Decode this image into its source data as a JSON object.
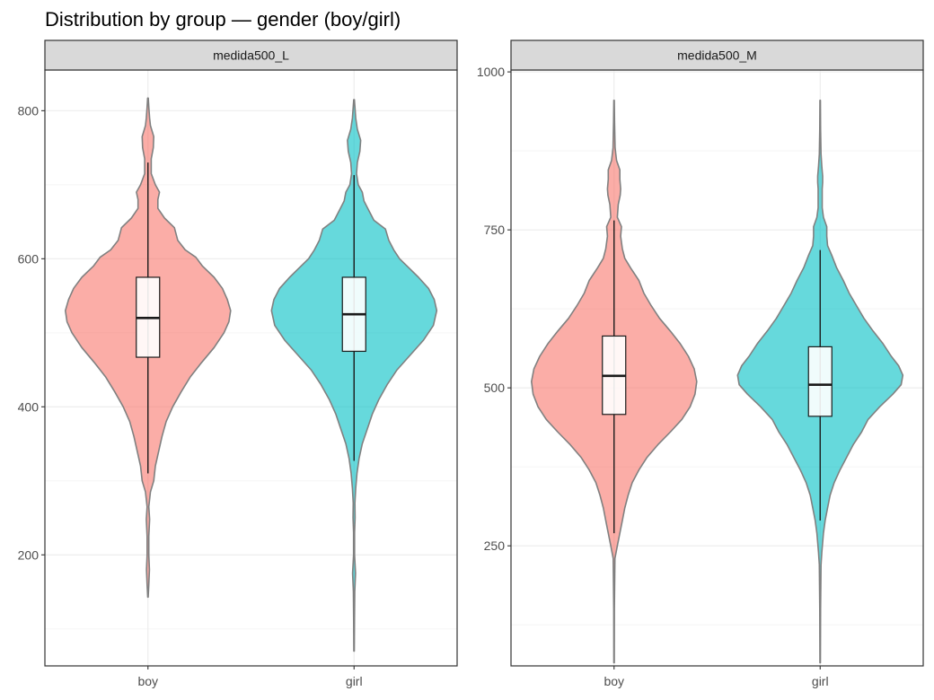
{
  "title": "Distribution by group — gender (boy/girl)",
  "colors": {
    "boy": "#F8766D",
    "girl": "#00BFC4",
    "violin_outline": "#808080",
    "strip_fill": "#d9d9d9",
    "panel_border": "#333333",
    "grid_major": "#ebebeb",
    "grid_minor": "#f5f5f5",
    "box_fill": "#ffffff",
    "box_line": "#1a1a1a"
  },
  "chart_data": [
    {
      "type": "violin",
      "panel": "medida500_L",
      "categories": [
        "boy",
        "girl"
      ],
      "ylim": [
        50,
        855
      ],
      "yticks": [
        200,
        400,
        600,
        800
      ],
      "grid": true,
      "series": [
        {
          "name": "boy",
          "min": 143,
          "max": 817,
          "box": {
            "q1": 467,
            "median": 520,
            "q3": 575,
            "whisker_low": 310,
            "whisker_high": 730
          },
          "density": [
            [
              143,
              0.003
            ],
            [
              160,
              0.01
            ],
            [
              180,
              0.018
            ],
            [
              200,
              0.01
            ],
            [
              225,
              0.01
            ],
            [
              248,
              0.02
            ],
            [
              265,
              0.01
            ],
            [
              285,
              0.03
            ],
            [
              300,
              0.07
            ],
            [
              320,
              0.09
            ],
            [
              340,
              0.13
            ],
            [
              360,
              0.17
            ],
            [
              380,
              0.22
            ],
            [
              400,
              0.3
            ],
            [
              420,
              0.4
            ],
            [
              440,
              0.51
            ],
            [
              460,
              0.65
            ],
            [
              480,
              0.8
            ],
            [
              500,
              0.92
            ],
            [
              515,
              0.98
            ],
            [
              530,
              1.0
            ],
            [
              545,
              0.96
            ],
            [
              560,
              0.9
            ],
            [
              575,
              0.8
            ],
            [
              590,
              0.66
            ],
            [
              602,
              0.58
            ],
            [
              612,
              0.45
            ],
            [
              625,
              0.36
            ],
            [
              642,
              0.32
            ],
            [
              655,
              0.2
            ],
            [
              668,
              0.12
            ],
            [
              680,
              0.12
            ],
            [
              690,
              0.14
            ],
            [
              700,
              0.09
            ],
            [
              715,
              0.04
            ],
            [
              735,
              0.04
            ],
            [
              750,
              0.065
            ],
            [
              765,
              0.07
            ],
            [
              780,
              0.03
            ],
            [
              790,
              0.02
            ],
            [
              805,
              0.01
            ],
            [
              817,
              0.004
            ]
          ]
        },
        {
          "name": "girl",
          "min": 70,
          "max": 815,
          "box": {
            "q1": 475,
            "median": 525,
            "q3": 575,
            "whisker_low": 327,
            "whisker_high": 713
          },
          "density": [
            [
              70,
              0.003
            ],
            [
              110,
              0.005
            ],
            [
              150,
              0.008
            ],
            [
              175,
              0.018
            ],
            [
              200,
              0.006
            ],
            [
              230,
              0.006
            ],
            [
              250,
              0.012
            ],
            [
              270,
              0.01
            ],
            [
              290,
              0.02
            ],
            [
              310,
              0.035
            ],
            [
              330,
              0.06
            ],
            [
              350,
              0.1
            ],
            [
              370,
              0.16
            ],
            [
              390,
              0.22
            ],
            [
              410,
              0.3
            ],
            [
              430,
              0.4
            ],
            [
              450,
              0.52
            ],
            [
              470,
              0.68
            ],
            [
              490,
              0.84
            ],
            [
              510,
              0.96
            ],
            [
              530,
              1.0
            ],
            [
              545,
              0.97
            ],
            [
              560,
              0.9
            ],
            [
              575,
              0.78
            ],
            [
              588,
              0.66
            ],
            [
              600,
              0.55
            ],
            [
              612,
              0.48
            ],
            [
              625,
              0.42
            ],
            [
              640,
              0.38
            ],
            [
              652,
              0.24
            ],
            [
              665,
              0.18
            ],
            [
              678,
              0.12
            ],
            [
              690,
              0.1
            ],
            [
              700,
              0.05
            ],
            [
              715,
              0.03
            ],
            [
              730,
              0.04
            ],
            [
              745,
              0.07
            ],
            [
              760,
              0.08
            ],
            [
              775,
              0.04
            ],
            [
              790,
              0.02
            ],
            [
              805,
              0.01
            ],
            [
              815,
              0.004
            ]
          ]
        }
      ]
    },
    {
      "type": "violin",
      "panel": "medida500_M",
      "categories": [
        "boy",
        "girl"
      ],
      "ylim": [
        60,
        1003
      ],
      "yticks": [
        250,
        500,
        750,
        1000
      ],
      "grid": true,
      "series": [
        {
          "name": "boy",
          "min": 65,
          "max": 955,
          "box": {
            "q1": 458,
            "median": 519,
            "q3": 582,
            "whisker_low": 270,
            "whisker_high": 765
          },
          "density": [
            [
              65,
              0.003
            ],
            [
              150,
              0.004
            ],
            [
              230,
              0.01
            ],
            [
              250,
              0.04
            ],
            [
              270,
              0.07
            ],
            [
              290,
              0.1
            ],
            [
              310,
              0.13
            ],
            [
              330,
              0.17
            ],
            [
              350,
              0.22
            ],
            [
              370,
              0.3
            ],
            [
              390,
              0.4
            ],
            [
              410,
              0.53
            ],
            [
              430,
              0.68
            ],
            [
              450,
              0.82
            ],
            [
              470,
              0.92
            ],
            [
              490,
              0.98
            ],
            [
              510,
              1.0
            ],
            [
              530,
              0.97
            ],
            [
              550,
              0.9
            ],
            [
              570,
              0.8
            ],
            [
              590,
              0.68
            ],
            [
              610,
              0.55
            ],
            [
              630,
              0.45
            ],
            [
              650,
              0.36
            ],
            [
              670,
              0.3
            ],
            [
              690,
              0.2
            ],
            [
              705,
              0.13
            ],
            [
              720,
              0.1
            ],
            [
              740,
              0.08
            ],
            [
              755,
              0.09
            ],
            [
              770,
              0.04
            ],
            [
              790,
              0.05
            ],
            [
              805,
              0.075
            ],
            [
              815,
              0.08
            ],
            [
              830,
              0.07
            ],
            [
              845,
              0.07
            ],
            [
              860,
              0.03
            ],
            [
              880,
              0.012
            ],
            [
              920,
              0.006
            ],
            [
              955,
              0.003
            ]
          ]
        },
        {
          "name": "girl",
          "min": 65,
          "max": 955,
          "box": {
            "q1": 455,
            "median": 505,
            "q3": 565,
            "whisker_low": 290,
            "whisker_high": 718
          },
          "density": [
            [
              65,
              0.003
            ],
            [
              150,
              0.005
            ],
            [
              220,
              0.01
            ],
            [
              240,
              0.02
            ],
            [
              255,
              0.03
            ],
            [
              270,
              0.04
            ],
            [
              290,
              0.06
            ],
            [
              310,
              0.09
            ],
            [
              330,
              0.12
            ],
            [
              350,
              0.17
            ],
            [
              370,
              0.24
            ],
            [
              390,
              0.32
            ],
            [
              410,
              0.4
            ],
            [
              430,
              0.5
            ],
            [
              450,
              0.58
            ],
            [
              470,
              0.72
            ],
            [
              490,
              0.88
            ],
            [
              505,
              0.98
            ],
            [
              520,
              1.0
            ],
            [
              535,
              0.95
            ],
            [
              550,
              0.86
            ],
            [
              570,
              0.76
            ],
            [
              590,
              0.64
            ],
            [
              610,
              0.53
            ],
            [
              630,
              0.44
            ],
            [
              650,
              0.35
            ],
            [
              670,
              0.28
            ],
            [
              690,
              0.2
            ],
            [
              710,
              0.14
            ],
            [
              725,
              0.09
            ],
            [
              740,
              0.08
            ],
            [
              755,
              0.08
            ],
            [
              770,
              0.04
            ],
            [
              785,
              0.025
            ],
            [
              800,
              0.025
            ],
            [
              815,
              0.025
            ],
            [
              825,
              0.03
            ],
            [
              835,
              0.03
            ],
            [
              850,
              0.02
            ],
            [
              870,
              0.01
            ],
            [
              910,
              0.005
            ],
            [
              955,
              0.003
            ]
          ]
        }
      ]
    }
  ]
}
